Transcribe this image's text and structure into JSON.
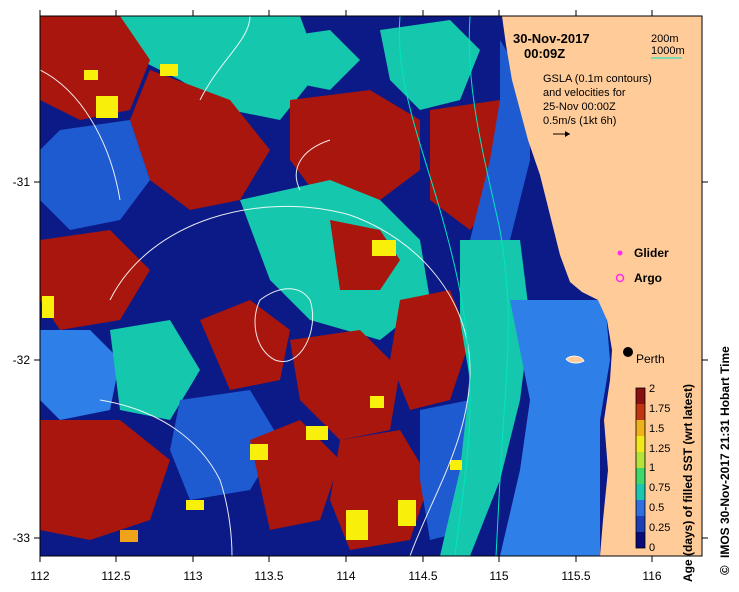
{
  "header": {
    "date": "30-Nov-2017",
    "time": "00:09Z"
  },
  "legend": {
    "contour_200": "200m",
    "contour_1000": "1000m",
    "contour_color": "#00e5c0",
    "gsla_line1": "GSLA (0.1m contours)",
    "gsla_line2": "and velocities for",
    "gsla_line3": "25-Nov 00:00Z",
    "gsla_line4": "0.5m/s (1kt 6h)",
    "glider_label": "Glider",
    "argo_label": "Argo",
    "glider_color": "#ff2cf0",
    "argo_color": "#ff2cf0"
  },
  "places": {
    "perth": "Perth"
  },
  "axes": {
    "x_ticks": [
      "112",
      "112.5",
      "113",
      "113.5",
      "114",
      "114.5",
      "115",
      "115.5",
      "116"
    ],
    "y_ticks": [
      "-31",
      "-32",
      "-33"
    ]
  },
  "colorbar": {
    "title": "Age (days) of filled SST (wrt latest)",
    "ticks": [
      "2",
      "1.75",
      "1.5",
      "1.25",
      "1",
      "0.75",
      "0.5",
      "0.25",
      "0"
    ],
    "colors": [
      "#0a0a78",
      "#1e3fb4",
      "#2f6fe0",
      "#1ac6b0",
      "#3fd66a",
      "#b6e33a",
      "#f2e81a",
      "#f0b21a",
      "#c0350f",
      "#8a0f0f"
    ]
  },
  "credit": "IMOS 30-Nov-2017 21:31 Hobart Time",
  "copyright_symbol": "©",
  "colors": {
    "land": "#ffcc99",
    "sea_deep": "#0b1a86",
    "sea_blue": "#1f5bd0",
    "sea_mid": "#2f7fe8",
    "teal": "#15c7ad",
    "red": "#a8160d",
    "darkred": "#7f0c0c",
    "yellow": "#f8ef0a",
    "orange": "#f0a21a"
  }
}
